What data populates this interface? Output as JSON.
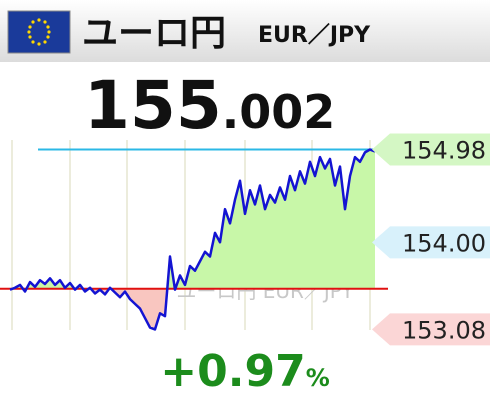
{
  "header": {
    "title": "ユーロ円",
    "subtitle": "EUR／JPY"
  },
  "price": {
    "integer": "155",
    "decimal": ".002"
  },
  "change": {
    "value": "+0.97",
    "unit": "%",
    "color": "#1c8c1c"
  },
  "chart_data": {
    "type": "line",
    "watermark": "ユーロ円 EUR／JPY",
    "color": "#1414d2",
    "above_color": "#c8f7a8",
    "below_color": "#f9c6c0",
    "values": [
      153.5,
      153.52,
      153.55,
      153.48,
      153.58,
      153.53,
      153.6,
      153.56,
      153.62,
      153.55,
      153.6,
      153.52,
      153.57,
      153.5,
      153.55,
      153.48,
      153.52,
      153.46,
      153.5,
      153.45,
      153.52,
      153.47,
      153.42,
      153.48,
      153.4,
      153.35,
      153.3,
      153.2,
      153.1,
      153.08,
      153.25,
      153.22,
      153.85,
      153.5,
      153.65,
      153.55,
      153.75,
      153.7,
      153.8,
      153.9,
      153.85,
      154.1,
      154.0,
      154.35,
      154.2,
      154.45,
      154.65,
      154.3,
      154.55,
      154.4,
      154.6,
      154.35,
      154.5,
      154.42,
      154.58,
      154.45,
      154.7,
      154.55,
      154.75,
      154.62,
      154.85,
      154.7,
      154.9,
      154.78,
      154.88,
      154.6,
      154.8,
      154.35,
      154.7,
      154.9,
      154.85,
      154.95,
      154.98,
      154.96
    ],
    "ylim": [
      153.0,
      155.07
    ],
    "yticks": [
      154.98,
      {
        "value": 154,
        "label": "154.00"
      },
      153.08
    ],
    "ytick_colors": [
      "#d4f7c4",
      "#d8f1fb",
      "#fbd6d6"
    ],
    "reference_lines": [
      {
        "value": 154.98,
        "color": "#2bb8e6"
      },
      {
        "value": 153.51,
        "color": "#e01010"
      }
    ]
  }
}
